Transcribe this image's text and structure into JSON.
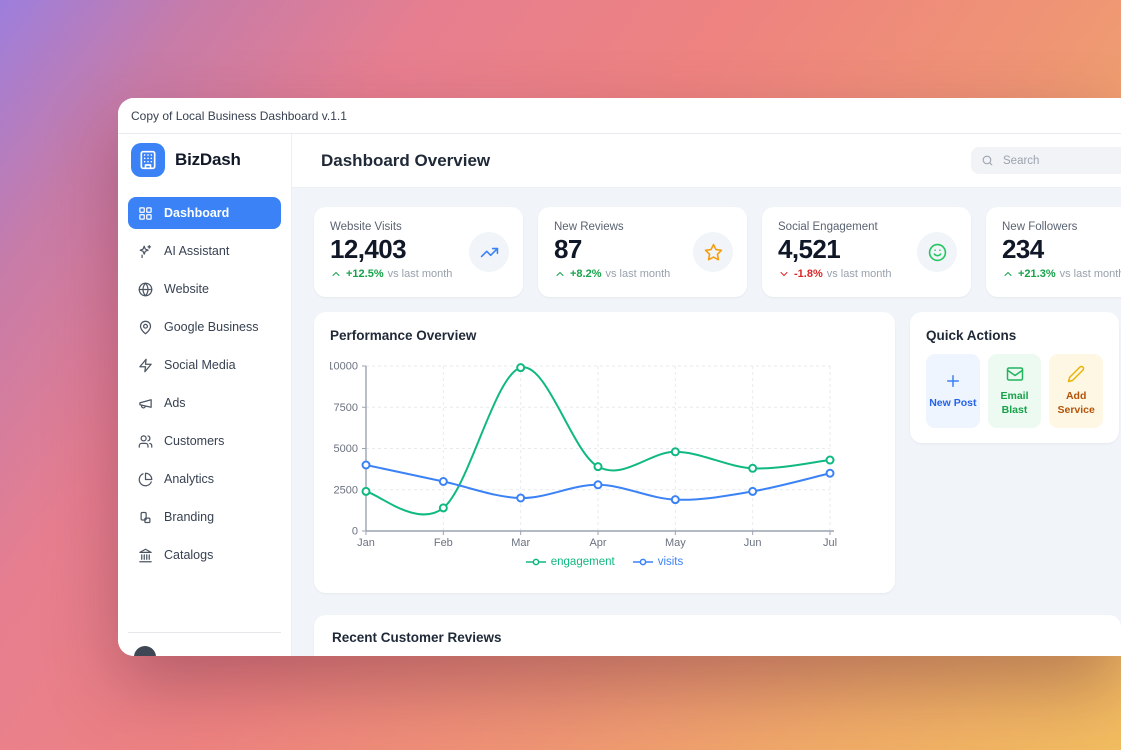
{
  "titlebar": {
    "title": "Copy of Local Business Dashboard v.1.1"
  },
  "sidebar": {
    "brand": {
      "name": "BizDash",
      "icon": "building-icon",
      "color": "#3b82f6"
    },
    "items": [
      {
        "label": "Dashboard",
        "icon": "grid-icon",
        "active": true
      },
      {
        "label": "AI Assistant",
        "icon": "sparkles-icon",
        "active": false
      },
      {
        "label": "Website",
        "icon": "globe-icon",
        "active": false
      },
      {
        "label": "Google Business",
        "icon": "map-pin-icon",
        "active": false
      },
      {
        "label": "Social Media",
        "icon": "zap-icon",
        "active": false
      },
      {
        "label": "Ads",
        "icon": "megaphone-icon",
        "active": false
      },
      {
        "label": "Customers",
        "icon": "users-icon",
        "active": false
      },
      {
        "label": "Analytics",
        "icon": "pie-chart-icon",
        "active": false
      },
      {
        "label": "Branding",
        "icon": "shapes-icon",
        "active": false
      },
      {
        "label": "Catalogs",
        "icon": "landmark-icon",
        "active": false
      }
    ]
  },
  "header": {
    "title": "Dashboard Overview",
    "search_placeholder": "Search",
    "search_icon": "search-icon"
  },
  "stats": {
    "vs_label": "vs last month",
    "cards": [
      {
        "label": "Website Visits",
        "value": "12,403",
        "delta": "+12.5%",
        "delta_dir": "up",
        "delta_color": "#16a34a",
        "trend_icon": "chevron-up-icon",
        "icon": "trending-up-icon",
        "icon_color": "#3b82f6"
      },
      {
        "label": "New Reviews",
        "value": "87",
        "delta": "+8.2%",
        "delta_dir": "up",
        "delta_color": "#16a34a",
        "trend_icon": "chevron-up-icon",
        "icon": "star-icon",
        "icon_color": "#f59e0b"
      },
      {
        "label": "Social Engagement",
        "value": "4,521",
        "delta": "-1.8%",
        "delta_dir": "down",
        "delta_color": "#dc2626",
        "trend_icon": "chevron-down-icon",
        "icon": "smile-icon",
        "icon_color": "#22c55e"
      },
      {
        "label": "New Followers",
        "value": "234",
        "delta": "+21.3%",
        "delta_dir": "up",
        "delta_color": "#16a34a",
        "trend_icon": "chevron-up-icon",
        "icon": null,
        "icon_color": null
      }
    ]
  },
  "performance": {
    "title": "Performance Overview"
  },
  "chart_data": {
    "type": "line",
    "x": [
      "Jan",
      "Feb",
      "Mar",
      "Apr",
      "May",
      "Jun",
      "Jul"
    ],
    "series": [
      {
        "name": "engagement",
        "color": "#10b981",
        "values": [
          2400,
          1400,
          9900,
          3900,
          4800,
          3800,
          4300
        ]
      },
      {
        "name": "visits",
        "color": "#3b82f6",
        "values": [
          4000,
          3000,
          2000,
          2800,
          1900,
          2400,
          3500
        ]
      }
    ],
    "ylim": [
      0,
      10000
    ],
    "yticks": [
      0,
      2500,
      5000,
      7500,
      10000
    ],
    "grid": true,
    "grid_dash": "3 3",
    "legend_position": "bottom",
    "marker": "circle"
  },
  "quick_actions": {
    "title": "Quick Actions",
    "actions": [
      {
        "label": "New Post",
        "icon": "plus-icon",
        "color": "#2563eb",
        "icon_color": "#3b82f6",
        "bg": "#eef5ff"
      },
      {
        "label": "Email Blast",
        "icon": "mail-icon",
        "color": "#16a34a",
        "icon_color": "#22b35e",
        "bg": "#edfaf1"
      },
      {
        "label": "Add Service",
        "icon": "pencil-icon",
        "color": "#b45309",
        "icon_color": "#eab308",
        "bg": "#fdf7e3"
      }
    ]
  },
  "reviews": {
    "title": "Recent Customer Reviews"
  }
}
